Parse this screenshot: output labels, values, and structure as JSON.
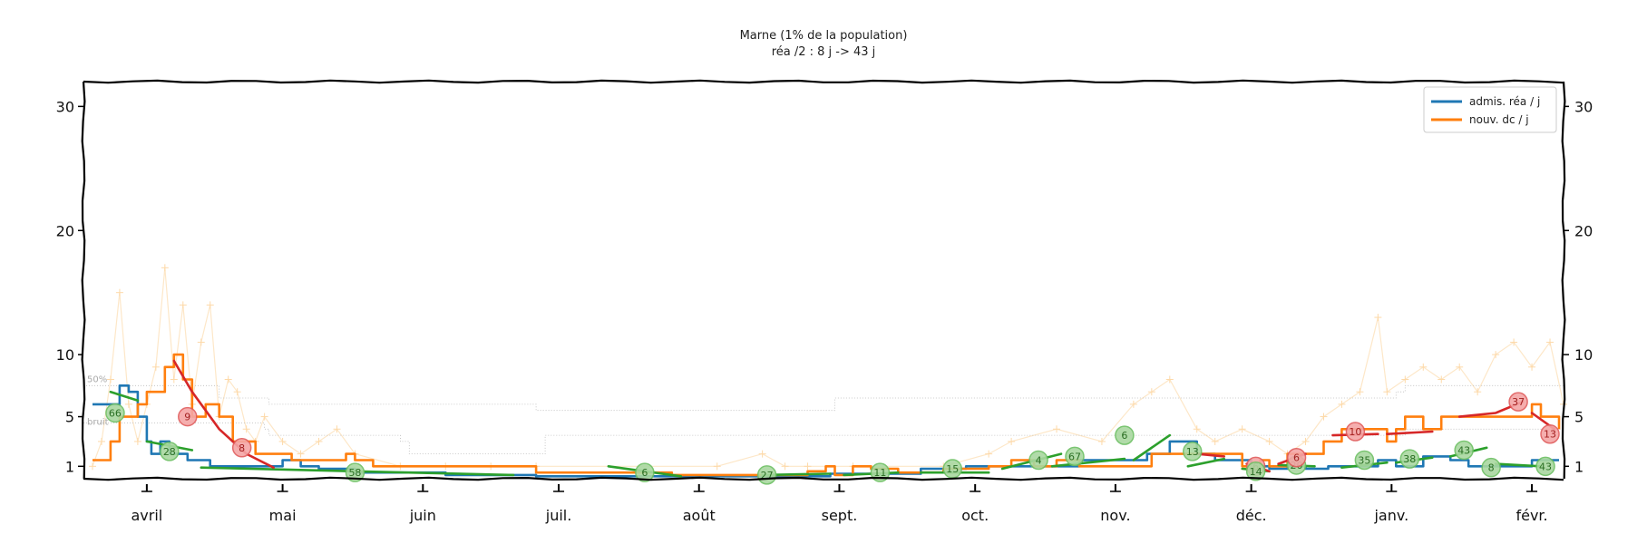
{
  "chart_data": {
    "type": "line",
    "title": "Marne (1% de la population)",
    "subtitle": "réa /2 : 8 j -> 43 j",
    "y_ticks": [
      {
        "value": 1,
        "label": "1"
      },
      {
        "value": 5,
        "label": "5"
      },
      {
        "value": 10,
        "label": "10"
      },
      {
        "value": 20,
        "label": "20"
      },
      {
        "value": 30,
        "label": "30"
      }
    ],
    "ylim": [
      0,
      32
    ],
    "x_months": [
      {
        "label": "avril",
        "day": 14
      },
      {
        "label": "mai",
        "day": 44
      },
      {
        "label": "juin",
        "day": 75
      },
      {
        "label": "juil.",
        "day": 105
      },
      {
        "label": "août",
        "day": 136
      },
      {
        "label": "sept.",
        "day": 167
      },
      {
        "label": "oct.",
        "day": 197
      },
      {
        "label": "nov.",
        "day": 228
      },
      {
        "label": "déc.",
        "day": 258
      },
      {
        "label": "janv.",
        "day": 289
      },
      {
        "label": "févr.",
        "day": 320
      }
    ],
    "xlim": [
      0,
      327
    ],
    "legend": {
      "position": "top-right"
    },
    "band_labels": {
      "median": "50%",
      "noise": "bruit"
    },
    "series": [
      {
        "name": "admis. réa / j",
        "color": "#1f77b4",
        "points": [
          [
            2,
            6
          ],
          [
            6,
            6
          ],
          [
            8,
            7.5
          ],
          [
            10,
            7
          ],
          [
            12,
            5
          ],
          [
            14,
            3
          ],
          [
            15,
            2
          ],
          [
            17,
            3
          ],
          [
            19,
            2
          ],
          [
            21,
            2
          ],
          [
            23,
            1.5
          ],
          [
            25,
            1.5
          ],
          [
            28,
            1
          ],
          [
            34,
            1
          ],
          [
            40,
            1
          ],
          [
            44,
            1.5
          ],
          [
            48,
            1
          ],
          [
            52,
            0.8
          ],
          [
            60,
            0.5
          ],
          [
            80,
            0.3
          ],
          [
            100,
            0.2
          ],
          [
            165,
            0.4
          ],
          [
            185,
            0.8
          ],
          [
            195,
            1
          ],
          [
            210,
            1
          ],
          [
            220,
            1.5
          ],
          [
            230,
            1.5
          ],
          [
            235,
            2
          ],
          [
            240,
            3
          ],
          [
            243,
            3
          ],
          [
            246,
            2
          ],
          [
            250,
            1.5
          ],
          [
            255,
            1.5
          ],
          [
            258,
            1
          ],
          [
            262,
            0.8
          ],
          [
            266,
            1
          ],
          [
            270,
            0.8
          ],
          [
            275,
            1
          ],
          [
            282,
            1
          ],
          [
            286,
            1.5
          ],
          [
            290,
            1
          ],
          [
            296,
            1.8
          ],
          [
            302,
            1.5
          ],
          [
            306,
            1
          ],
          [
            312,
            1
          ],
          [
            316,
            1
          ],
          [
            320,
            1.5
          ],
          [
            326,
            1.5
          ]
        ]
      },
      {
        "name": "nouv. dc / j",
        "color": "#ff7f0e",
        "points": [
          [
            2,
            1.5
          ],
          [
            4,
            1.5
          ],
          [
            6,
            3
          ],
          [
            8,
            5
          ],
          [
            10,
            5
          ],
          [
            12,
            6
          ],
          [
            14,
            7
          ],
          [
            16,
            7
          ],
          [
            18,
            9
          ],
          [
            20,
            10
          ],
          [
            22,
            8
          ],
          [
            24,
            5
          ],
          [
            27,
            6
          ],
          [
            30,
            5
          ],
          [
            33,
            3
          ],
          [
            38,
            2
          ],
          [
            42,
            2
          ],
          [
            46,
            1.5
          ],
          [
            52,
            1.5
          ],
          [
            56,
            1.5
          ],
          [
            58,
            2
          ],
          [
            60,
            1.5
          ],
          [
            64,
            1
          ],
          [
            70,
            1
          ],
          [
            80,
            1
          ],
          [
            90,
            1
          ],
          [
            100,
            0.5
          ],
          [
            130,
            0.3
          ],
          [
            160,
            0.6
          ],
          [
            164,
            1
          ],
          [
            166,
            0.3
          ],
          [
            170,
            1
          ],
          [
            174,
            0.8
          ],
          [
            180,
            0.5
          ],
          [
            190,
            0.8
          ],
          [
            200,
            1
          ],
          [
            205,
            1.5
          ],
          [
            210,
            1
          ],
          [
            215,
            1.5
          ],
          [
            220,
            1
          ],
          [
            228,
            1
          ],
          [
            232,
            1
          ],
          [
            236,
            2
          ],
          [
            240,
            2
          ],
          [
            244,
            2
          ],
          [
            248,
            2
          ],
          [
            252,
            2
          ],
          [
            256,
            1
          ],
          [
            260,
            1.5
          ],
          [
            262,
            1
          ],
          [
            266,
            2
          ],
          [
            270,
            2
          ],
          [
            274,
            3
          ],
          [
            278,
            4
          ],
          [
            282,
            4
          ],
          [
            286,
            4
          ],
          [
            288,
            3
          ],
          [
            290,
            4
          ],
          [
            292,
            5
          ],
          [
            296,
            4
          ],
          [
            300,
            5
          ],
          [
            304,
            5
          ],
          [
            310,
            5
          ],
          [
            316,
            5
          ],
          [
            320,
            6
          ],
          [
            322,
            5
          ],
          [
            326,
            4
          ]
        ]
      }
    ],
    "fit_trends": [
      {
        "color": "#2ca02c",
        "points": [
          [
            6,
            7
          ],
          [
            12,
            6.3
          ]
        ]
      },
      {
        "color": "#2ca02c",
        "points": [
          [
            14,
            3
          ],
          [
            24,
            2.3
          ]
        ]
      },
      {
        "color": "#2ca02c",
        "points": [
          [
            26,
            0.9
          ],
          [
            60,
            0.6
          ],
          [
            95,
            0.3
          ]
        ]
      },
      {
        "color": "#2ca02c",
        "points": [
          [
            116,
            1
          ],
          [
            132,
            0.2
          ]
        ]
      },
      {
        "color": "#2ca02c",
        "points": [
          [
            150,
            0.3
          ],
          [
            165,
            0.4
          ]
        ]
      },
      {
        "color": "#2ca02c",
        "points": [
          [
            168,
            0.3
          ],
          [
            180,
            0.5
          ]
        ]
      },
      {
        "color": "#2ca02c",
        "points": [
          [
            185,
            0.5
          ],
          [
            200,
            0.5
          ]
        ]
      },
      {
        "color": "#2ca02c",
        "points": [
          [
            203,
            0.8
          ],
          [
            216,
            2
          ]
        ]
      },
      {
        "color": "#2ca02c",
        "points": [
          [
            214,
            1
          ],
          [
            230,
            1.6
          ]
        ]
      },
      {
        "color": "#2ca02c",
        "points": [
          [
            232,
            1.5
          ],
          [
            240,
            3.5
          ]
        ]
      },
      {
        "color": "#2ca02c",
        "points": [
          [
            244,
            1
          ],
          [
            252,
            1.6
          ]
        ]
      },
      {
        "color": "#2ca02c",
        "points": [
          [
            256,
            0.8
          ],
          [
            262,
            0.6
          ]
        ]
      },
      {
        "color": "#2ca02c",
        "points": [
          [
            264,
            1.1
          ],
          [
            272,
            1
          ]
        ]
      },
      {
        "color": "#2ca02c",
        "points": [
          [
            278,
            0.9
          ],
          [
            288,
            1.3
          ]
        ]
      },
      {
        "color": "#2ca02c",
        "points": [
          [
            290,
            1.3
          ],
          [
            298,
            1.7
          ]
        ]
      },
      {
        "color": "#2ca02c",
        "points": [
          [
            302,
            1.8
          ],
          [
            310,
            2.5
          ]
        ]
      },
      {
        "color": "#2ca02c",
        "points": [
          [
            312,
            1.2
          ],
          [
            322,
            1
          ]
        ]
      },
      {
        "color": "#d62728",
        "points": [
          [
            20,
            9.5
          ],
          [
            24,
            7
          ],
          [
            30,
            4
          ],
          [
            36,
            2
          ],
          [
            42,
            0.9
          ]
        ]
      },
      {
        "color": "#d62728",
        "points": [
          [
            246,
            2
          ],
          [
            252,
            1.8
          ]
        ]
      },
      {
        "color": "#d62728",
        "points": [
          [
            257,
            1.2
          ],
          [
            262,
            0.6
          ]
        ]
      },
      {
        "color": "#d62728",
        "points": [
          [
            264,
            1.2
          ],
          [
            270,
            2
          ]
        ]
      },
      {
        "color": "#d62728",
        "points": [
          [
            276,
            3.5
          ],
          [
            286,
            3.6
          ]
        ]
      },
      {
        "color": "#d62728",
        "points": [
          [
            288,
            3.6
          ],
          [
            298,
            3.8
          ]
        ]
      },
      {
        "color": "#d62728",
        "points": [
          [
            304,
            5
          ],
          [
            312,
            5.3
          ],
          [
            318,
            6.2
          ]
        ]
      },
      {
        "color": "#d62728",
        "points": [
          [
            320,
            5.3
          ],
          [
            325,
            4
          ]
        ]
      }
    ],
    "bubbles": [
      {
        "day": 7,
        "y": 5.3,
        "label": "66",
        "color": "#2ca02c"
      },
      {
        "day": 19,
        "y": 2.2,
        "label": "28",
        "color": "#2ca02c"
      },
      {
        "day": 23,
        "y": 5,
        "label": "9",
        "color": "#d62728"
      },
      {
        "day": 35,
        "y": 2.5,
        "label": "8",
        "color": "#d62728"
      },
      {
        "day": 60,
        "y": 0.5,
        "label": "58",
        "color": "#2ca02c"
      },
      {
        "day": 124,
        "y": 0.5,
        "label": "6",
        "color": "#2ca02c"
      },
      {
        "day": 151,
        "y": 0.3,
        "label": "27",
        "color": "#2ca02c"
      },
      {
        "day": 176,
        "y": 0.5,
        "label": "11",
        "color": "#2ca02c"
      },
      {
        "day": 192,
        "y": 0.8,
        "label": "15",
        "color": "#2ca02c"
      },
      {
        "day": 211,
        "y": 1.5,
        "label": "4",
        "color": "#2ca02c"
      },
      {
        "day": 219,
        "y": 1.8,
        "label": "67",
        "color": "#2ca02c"
      },
      {
        "day": 230,
        "y": 3.5,
        "label": "6",
        "color": "#2ca02c"
      },
      {
        "day": 245,
        "y": 2.2,
        "label": "13",
        "color": "#2ca02c"
      },
      {
        "day": 259,
        "y": 1,
        "label": "6",
        "color": "#d62728"
      },
      {
        "day": 259,
        "y": 0.6,
        "label": "14",
        "color": "#2ca02c"
      },
      {
        "day": 268,
        "y": 1.1,
        "label": "20",
        "color": "#2ca02c"
      },
      {
        "day": 268,
        "y": 1.7,
        "label": "6",
        "color": "#d62728"
      },
      {
        "day": 281,
        "y": 3.8,
        "label": "10",
        "color": "#d62728"
      },
      {
        "day": 283,
        "y": 1.5,
        "label": "35",
        "color": "#2ca02c"
      },
      {
        "day": 293,
        "y": 1.6,
        "label": "38",
        "color": "#2ca02c"
      },
      {
        "day": 305,
        "y": 2.3,
        "label": "43",
        "color": "#2ca02c"
      },
      {
        "day": 311,
        "y": 0.9,
        "label": "8",
        "color": "#2ca02c"
      },
      {
        "day": 317,
        "y": 6.2,
        "label": "37",
        "color": "#d62728"
      },
      {
        "day": 323,
        "y": 1,
        "label": "43",
        "color": "#2ca02c"
      },
      {
        "day": 324,
        "y": 3.6,
        "label": "13",
        "color": "#d62728"
      }
    ],
    "band_median": [
      [
        0,
        7.5
      ],
      [
        30,
        6.5
      ],
      [
        40,
        6.5
      ],
      [
        41,
        6
      ],
      [
        100,
        5.5
      ],
      [
        130,
        5.5
      ],
      [
        165,
        5.5
      ],
      [
        166,
        6.5
      ],
      [
        290,
        7
      ],
      [
        292,
        7.5
      ],
      [
        327,
        7.5
      ]
    ],
    "band_noise": [
      [
        0,
        4.5
      ],
      [
        40,
        4
      ],
      [
        41,
        3.5
      ],
      [
        70,
        3
      ],
      [
        72,
        2
      ],
      [
        100,
        2
      ],
      [
        102,
        3.5
      ],
      [
        290,
        3.5
      ],
      [
        292,
        4
      ],
      [
        327,
        4
      ]
    ],
    "raw_daily_peaks": [
      [
        2,
        1
      ],
      [
        4,
        3
      ],
      [
        6,
        8
      ],
      [
        8,
        15
      ],
      [
        10,
        6
      ],
      [
        12,
        3
      ],
      [
        14,
        6
      ],
      [
        16,
        9
      ],
      [
        18,
        17
      ],
      [
        20,
        8
      ],
      [
        22,
        14
      ],
      [
        24,
        6
      ],
      [
        26,
        11
      ],
      [
        28,
        14
      ],
      [
        30,
        5
      ],
      [
        32,
        8
      ],
      [
        34,
        7
      ],
      [
        36,
        4
      ],
      [
        38,
        3
      ],
      [
        40,
        5
      ],
      [
        44,
        3
      ],
      [
        48,
        2
      ],
      [
        52,
        3
      ],
      [
        56,
        4
      ],
      [
        60,
        2
      ],
      [
        70,
        1
      ],
      [
        80,
        1
      ],
      [
        90,
        1
      ],
      [
        100,
        1
      ],
      [
        140,
        1
      ],
      [
        150,
        2
      ],
      [
        155,
        1
      ],
      [
        160,
        1
      ],
      [
        170,
        1
      ],
      [
        190,
        1
      ],
      [
        200,
        2
      ],
      [
        205,
        3
      ],
      [
        215,
        4
      ],
      [
        225,
        3
      ],
      [
        232,
        6
      ],
      [
        236,
        7
      ],
      [
        240,
        8
      ],
      [
        246,
        4
      ],
      [
        250,
        3
      ],
      [
        256,
        4
      ],
      [
        262,
        3
      ],
      [
        266,
        2
      ],
      [
        270,
        3
      ],
      [
        274,
        5
      ],
      [
        278,
        6
      ],
      [
        282,
        7
      ],
      [
        286,
        13
      ],
      [
        288,
        7
      ],
      [
        292,
        8
      ],
      [
        296,
        9
      ],
      [
        300,
        8
      ],
      [
        304,
        9
      ],
      [
        308,
        7
      ],
      [
        312,
        10
      ],
      [
        316,
        11
      ],
      [
        320,
        9
      ],
      [
        324,
        11
      ],
      [
        327,
        6
      ]
    ]
  }
}
